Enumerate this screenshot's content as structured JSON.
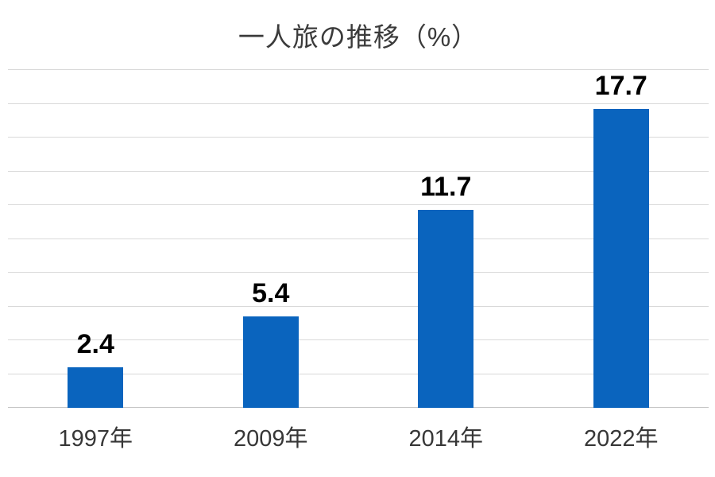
{
  "page": {
    "background_color": "#ffffff"
  },
  "chart_data": {
    "type": "bar",
    "title": "一人旅の推移（%）",
    "categories": [
      "1997年",
      "2009年",
      "2014年",
      "2022年"
    ],
    "values": [
      2.4,
      5.4,
      11.7,
      17.7
    ],
    "value_labels": [
      "2.4",
      "5.4",
      "11.7",
      "17.7"
    ],
    "xlabel": "",
    "ylabel": "",
    "ylim": [
      0,
      20
    ],
    "gridline_step": 2,
    "grid": true,
    "y_tick_labels_visible": false,
    "legend": "none",
    "colors": {
      "bar": "#0a64be",
      "gridline": "#d9d9d9",
      "axis_line": "#c6c6c6",
      "title_text": "#3b3b3b",
      "value_label_text": "#000000",
      "tick_label_text": "#373737",
      "background": "#ffffff"
    }
  }
}
